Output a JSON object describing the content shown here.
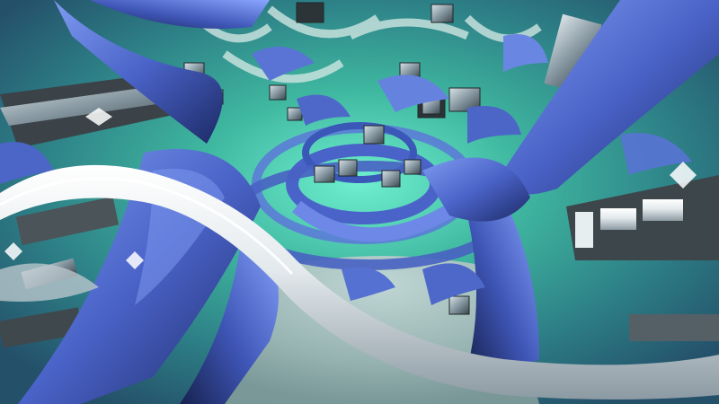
{
  "scene": {
    "palette": {
      "teal_glow": "#5fe0c4",
      "teal_deep": "#1f7f76",
      "ribbon_blue": "#4a63c8",
      "ribbon_dark": "#20306f",
      "silver": "#e8ecef",
      "silver_shadow": "#8c9aa3",
      "fog_floor": "#9fb8b6",
      "cube_dark": "#2c3438"
    },
    "elements": [
      "teal-glow-background",
      "fog-floor",
      "blue-ribbon-structures",
      "metal-cube-clusters",
      "silver-tube-foreground"
    ]
  }
}
